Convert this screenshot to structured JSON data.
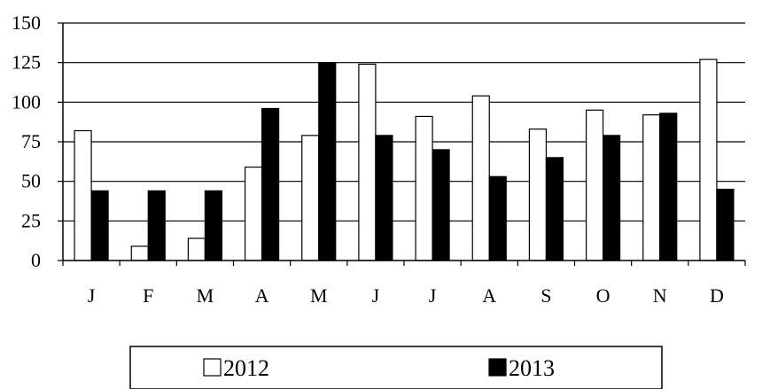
{
  "chart_data": {
    "type": "bar",
    "categories": [
      "J",
      "F",
      "M",
      "A",
      "M",
      "J",
      "J",
      "A",
      "S",
      "O",
      "N",
      "D"
    ],
    "series": [
      {
        "name": "2012",
        "values": [
          82,
          9,
          14,
          59,
          79,
          124,
          91,
          104,
          83,
          95,
          92,
          127
        ],
        "color": "#ffffff"
      },
      {
        "name": "2013",
        "values": [
          44,
          44,
          44,
          96,
          125,
          79,
          70,
          53,
          65,
          79,
          93,
          45
        ],
        "color": "#000000"
      }
    ],
    "yticks": [
      "0",
      "25",
      "50",
      "75",
      "100",
      "125",
      "150"
    ],
    "ylim": [
      0,
      150
    ],
    "grid": true,
    "legend_position": "bottom"
  }
}
